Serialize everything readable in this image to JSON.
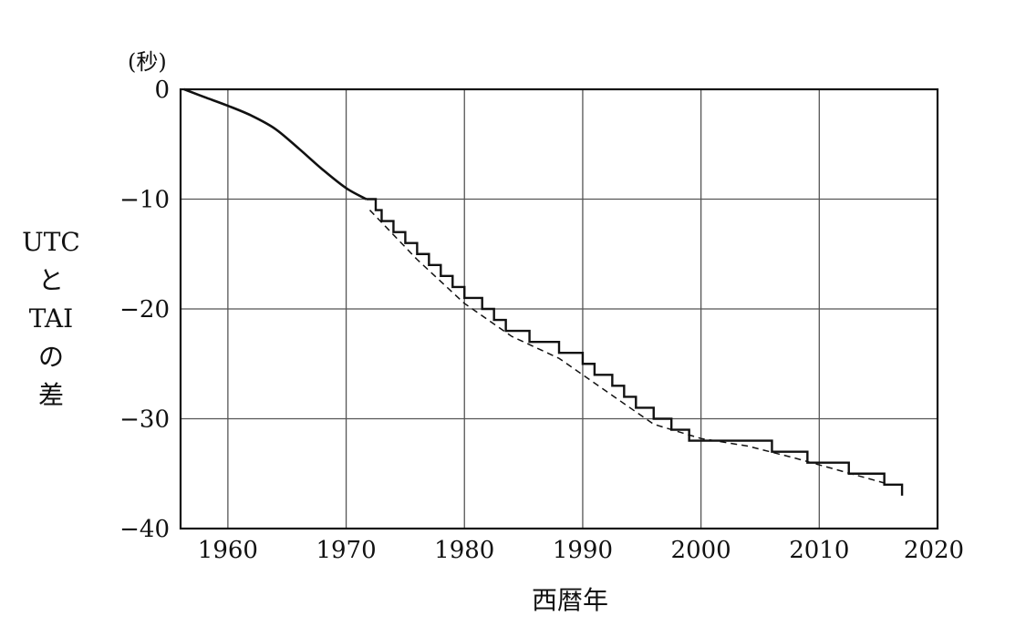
{
  "chart_data": {
    "type": "line",
    "unit_label": "(秒)",
    "xlabel": "西暦年",
    "ylabel_lines": [
      "UTC",
      "と",
      "TAI",
      "の",
      "差"
    ],
    "xlim": [
      1956,
      2020
    ],
    "ylim": [
      -40,
      0
    ],
    "x_ticks": [
      1960,
      1970,
      1980,
      1990,
      2000,
      2010,
      2020
    ],
    "x_tick_labels": [
      "1960",
      "1970",
      "1980",
      "1990",
      "2000",
      "2010",
      "2020"
    ],
    "y_ticks": [
      0,
      -10,
      -20,
      -30,
      -40
    ],
    "y_tick_labels": [
      "0",
      "−10",
      "−20",
      "−30",
      "−40"
    ],
    "grid": true,
    "series": [
      {
        "style": "solid-curve",
        "x": [
          1956.3,
          1958,
          1960,
          1962,
          1964,
          1966,
          1968,
          1970,
          1971.7
        ],
        "y": [
          0,
          -0.7,
          -1.5,
          -2.4,
          -3.6,
          -5.4,
          -7.3,
          -9.0,
          -10.0
        ]
      },
      {
        "style": "dashed-trend",
        "x": [
          1972,
          1976,
          1980,
          1984,
          1988,
          1992,
          1996,
          2000,
          2004,
          2008,
          2012,
          2016
        ],
        "y": [
          -11.0,
          -15.5,
          -19.5,
          -22.5,
          -24.5,
          -27.5,
          -30.5,
          -31.8,
          -32.5,
          -33.6,
          -34.8,
          -36.0
        ]
      },
      {
        "style": "step",
        "x": [
          1971.7,
          1972.5,
          1973.0,
          1974.0,
          1975.0,
          1976.0,
          1977.0,
          1978.0,
          1979.0,
          1980.0,
          1981.5,
          1982.5,
          1983.5,
          1985.5,
          1988.0,
          1990.0,
          1991.0,
          1992.5,
          1993.5,
          1994.5,
          1996.0,
          1997.5,
          1999.0,
          2006.0,
          2009.0,
          2012.5,
          2015.5,
          2017.0
        ],
        "y": [
          -10,
          -11,
          -12,
          -13,
          -14,
          -15,
          -16,
          -17,
          -18,
          -19,
          -20,
          -21,
          -22,
          -23,
          -24,
          -25,
          -26,
          -27,
          -28,
          -29,
          -30,
          -31,
          -32,
          -33,
          -34,
          -35,
          -36,
          -37
        ]
      }
    ]
  }
}
